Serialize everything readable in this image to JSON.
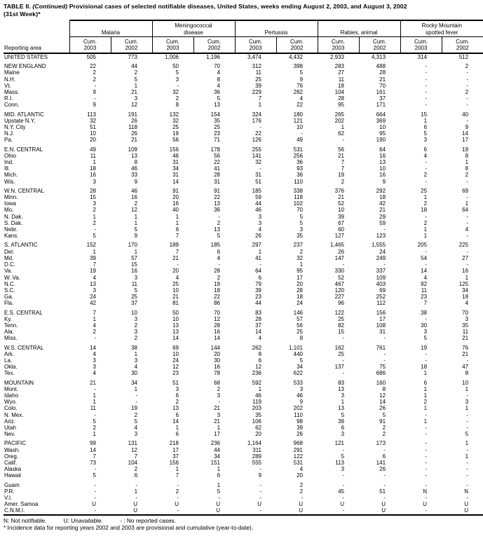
{
  "title": {
    "prefix": "TABLE II.",
    "continued": "(Continued)",
    "rest": "Provisional cases of selected notifiable diseases, United States, weeks ending August 2, 2003, and August 3, 2002",
    "week": "(31st Week)*"
  },
  "table": {
    "reporting_area_label": "Reporting area",
    "groups": [
      {
        "label": "Malaria",
        "sub": [
          "Cum.\n2003",
          "Cum.\n2002"
        ]
      },
      {
        "label": "Meningococcal\ndisease",
        "sub": [
          "Cum.\n2003",
          "Cum.\n2002"
        ]
      },
      {
        "label": "Pertussis",
        "sub": [
          "Cum.\n2003",
          "Cum.\n2002"
        ]
      },
      {
        "label": "Rabies, animal",
        "sub": [
          "Cum.\n2003",
          "Cum.\n2002"
        ]
      },
      {
        "label": "Rocky Mountain\nspotted fever",
        "sub": [
          "Cum.\n2003",
          "Cum.\n2002"
        ]
      }
    ],
    "sections": [
      {
        "rows": [
          [
            "UNITED STATES",
            "505",
            "773",
            "1,006",
            "1,196",
            "3,474",
            "4,432",
            "2,933",
            "4,313",
            "314",
            "512"
          ]
        ]
      },
      {
        "rows": [
          [
            "NEW ENGLAND",
            "22",
            "44",
            "50",
            "70",
            "312",
            "398",
            "283",
            "488",
            "-",
            "2"
          ],
          [
            "Maine",
            "2",
            "2",
            "5",
            "4",
            "11",
            "5",
            "27",
            "28",
            "-",
            "-"
          ],
          [
            "N.H.",
            "2",
            "5",
            "3",
            "8",
            "25",
            "9",
            "11",
            "21",
            "-",
            "-"
          ],
          [
            "Vt.",
            "-",
            "1",
            "-",
            "4",
            "39",
            "76",
            "18",
            "70",
            "-",
            "-"
          ],
          [
            "Mass.",
            "9",
            "21",
            "32",
            "36",
            "229",
            "282",
            "104",
            "161",
            "-",
            "2"
          ],
          [
            "R.I.",
            "-",
            "3",
            "2",
            "5",
            "7",
            "4",
            "28",
            "37",
            "-",
            "-"
          ],
          [
            "Conn.",
            "9",
            "12",
            "8",
            "13",
            "1",
            "22",
            "95",
            "171",
            "-",
            "-"
          ]
        ]
      },
      {
        "rows": [
          [
            "MID. ATLANTIC",
            "113",
            "191",
            "132",
            "154",
            "324",
            "180",
            "265",
            "664",
            "15",
            "40"
          ],
          [
            "Upstate N.Y.",
            "32",
            "26",
            "32",
            "35",
            "176",
            "121",
            "202",
            "369",
            "1",
            "-"
          ],
          [
            "N.Y. City",
            "51",
            "118",
            "25",
            "25",
            "-",
            "10",
            "1",
            "10",
            "6",
            "9"
          ],
          [
            "N.J.",
            "10",
            "26",
            "19",
            "23",
            "22",
            "-",
            "62",
            "95",
            "5",
            "14"
          ],
          [
            "Pa.",
            "20",
            "21",
            "56",
            "71",
            "126",
            "49",
            "-",
            "190",
            "3",
            "17"
          ]
        ]
      },
      {
        "rows": [
          [
            "E.N. CENTRAL",
            "49",
            "109",
            "156",
            "178",
            "255",
            "531",
            "56",
            "64",
            "6",
            "19"
          ],
          [
            "Ohio",
            "11",
            "13",
            "46",
            "56",
            "141",
            "256",
            "21",
            "16",
            "4",
            "8"
          ],
          [
            "Ind.",
            "1",
            "8",
            "31",
            "22",
            "32",
            "36",
            "7",
            "13",
            "-",
            "1"
          ],
          [
            "Ill.",
            "18",
            "46",
            "34",
            "41",
            "-",
            "93",
            "7",
            "10",
            "-",
            "8"
          ],
          [
            "Mich.",
            "16",
            "33",
            "31",
            "28",
            "31",
            "36",
            "19",
            "16",
            "2",
            "2"
          ],
          [
            "Wis.",
            "3",
            "9",
            "14",
            "31",
            "51",
            "110",
            "2",
            "9",
            "-",
            "-"
          ]
        ]
      },
      {
        "rows": [
          [
            "W.N. CENTRAL",
            "28",
            "46",
            "91",
            "91",
            "185",
            "338",
            "376",
            "292",
            "25",
            "69"
          ],
          [
            "Minn.",
            "15",
            "16",
            "20",
            "22",
            "59",
            "118",
            "21",
            "18",
            "1",
            "-"
          ],
          [
            "Iowa",
            "3",
            "2",
            "16",
            "13",
            "44",
            "102",
            "52",
            "42",
            "2",
            "1"
          ],
          [
            "Mo.",
            "2",
            "12",
            "40",
            "36",
            "46",
            "70",
            "10",
            "21",
            "18",
            "64"
          ],
          [
            "N. Dak.",
            "1",
            "1",
            "1",
            "-",
            "3",
            "5",
            "39",
            "29",
            "-",
            "-"
          ],
          [
            "S. Dak.",
            "2",
            "1",
            "1",
            "2",
            "3",
            "5",
            "67",
            "59",
            "2",
            "-"
          ],
          [
            "Nebr.",
            "-",
            "5",
            "6",
            "13",
            "4",
            "3",
            "60",
            "-",
            "1",
            "4"
          ],
          [
            "Kans.",
            "5",
            "9",
            "7",
            "5",
            "26",
            "35",
            "127",
            "123",
            "1",
            "-"
          ]
        ]
      },
      {
        "rows": [
          [
            "S. ATLANTIC",
            "152",
            "170",
            "189",
            "185",
            "297",
            "237",
            "1,465",
            "1,555",
            "205",
            "225"
          ],
          [
            "Del.",
            "1",
            "1",
            "7",
            "6",
            "1",
            "2",
            "26",
            "24",
            "-",
            "-"
          ],
          [
            "Md.",
            "39",
            "57",
            "21",
            "4",
            "41",
            "32",
            "147",
            "249",
            "54",
            "27"
          ],
          [
            "D.C.",
            "7",
            "15",
            "-",
            "-",
            "-",
            "1",
            "-",
            "-",
            "-",
            "-"
          ],
          [
            "Va.",
            "19",
            "16",
            "20",
            "28",
            "64",
            "95",
            "330",
            "337",
            "14",
            "16"
          ],
          [
            "W. Va.",
            "4",
            "3",
            "4",
            "2",
            "6",
            "17",
            "52",
            "109",
            "4",
            "1"
          ],
          [
            "N.C.",
            "13",
            "11",
            "25",
            "19",
            "79",
            "20",
            "467",
            "403",
            "92",
            "125"
          ],
          [
            "S.C.",
            "3",
            "5",
            "10",
            "18",
            "39",
            "28",
            "120",
            "69",
            "11",
            "34"
          ],
          [
            "Ga.",
            "24",
            "25",
            "21",
            "22",
            "23",
            "18",
            "227",
            "252",
            "23",
            "18"
          ],
          [
            "Fla.",
            "42",
            "37",
            "81",
            "86",
            "44",
            "24",
            "96",
            "112",
            "7",
            "4"
          ]
        ]
      },
      {
        "rows": [
          [
            "E.S. CENTRAL",
            "7",
            "10",
            "50",
            "70",
            "83",
            "146",
            "122",
            "156",
            "38",
            "70"
          ],
          [
            "Ky.",
            "1",
            "3",
            "10",
            "12",
            "28",
            "57",
            "25",
            "17",
            "-",
            "3"
          ],
          [
            "Tenn.",
            "4",
            "2",
            "13",
            "28",
            "37",
            "56",
            "82",
            "108",
            "30",
            "35"
          ],
          [
            "Ala.",
            "2",
            "3",
            "13",
            "16",
            "14",
            "25",
            "15",
            "31",
            "3",
            "11"
          ],
          [
            "Miss.",
            "-",
            "2",
            "14",
            "14",
            "4",
            "8",
            "-",
            "-",
            "5",
            "21"
          ]
        ]
      },
      {
        "rows": [
          [
            "W.S. CENTRAL",
            "14",
            "38",
            "69",
            "144",
            "262",
            "1,101",
            "162",
            "761",
            "19",
            "76"
          ],
          [
            "Ark.",
            "4",
            "1",
            "10",
            "20",
            "8",
            "440",
            "25",
            "-",
            "-",
            "21"
          ],
          [
            "La.",
            "3",
            "3",
            "24",
            "30",
            "6",
            "5",
            "-",
            "-",
            "-",
            "-"
          ],
          [
            "Okla.",
            "3",
            "4",
            "12",
            "16",
            "12",
            "34",
            "137",
            "75",
            "18",
            "47"
          ],
          [
            "Tex.",
            "4",
            "30",
            "23",
            "78",
            "236",
            "622",
            "-",
            "686",
            "1",
            "8"
          ]
        ]
      },
      {
        "rows": [
          [
            "MOUNTAIN",
            "21",
            "34",
            "51",
            "68",
            "592",
            "533",
            "83",
            "160",
            "6",
            "10"
          ],
          [
            "Mont.",
            "-",
            "1",
            "3",
            "2",
            "1",
            "3",
            "13",
            "8",
            "1",
            "1"
          ],
          [
            "Idaho",
            "1",
            "-",
            "6",
            "3",
            "46",
            "46",
            "3",
            "12",
            "1",
            "-"
          ],
          [
            "Wyo.",
            "1",
            "-",
            "2",
            "-",
            "119",
            "9",
            "1",
            "14",
            "2",
            "3"
          ],
          [
            "Colo.",
            "11",
            "19",
            "13",
            "21",
            "203",
            "202",
            "13",
            "26",
            "1",
            "1"
          ],
          [
            "N. Mex.",
            "-",
            "2",
            "6",
            "3",
            "35",
            "110",
            "5",
            "5",
            "-",
            "-"
          ],
          [
            "Ariz.",
            "5",
            "5",
            "14",
            "21",
            "106",
            "98",
            "39",
            "91",
            "1",
            "-"
          ],
          [
            "Utah",
            "2",
            "4",
            "1",
            "1",
            "62",
            "39",
            "6",
            "2",
            "-",
            "-"
          ],
          [
            "Nev.",
            "1",
            "3",
            "6",
            "17",
            "20",
            "26",
            "3",
            "2",
            "-",
            "5"
          ]
        ]
      },
      {
        "rows": [
          [
            "PACIFIC",
            "99",
            "131",
            "218",
            "236",
            "1,164",
            "968",
            "121",
            "173",
            "-",
            "1"
          ],
          [
            "Wash.",
            "14",
            "12",
            "17",
            "44",
            "311",
            "291",
            "-",
            "-",
            "-",
            "-"
          ],
          [
            "Oreg.",
            "7",
            "7",
            "37",
            "34",
            "289",
            "122",
            "5",
            "6",
            "-",
            "1"
          ],
          [
            "Calif.",
            "73",
            "104",
            "156",
            "151",
            "555",
            "531",
            "113",
            "141",
            "-",
            "-"
          ],
          [
            "Alaska",
            "-",
            "2",
            "1",
            "1",
            "-",
            "4",
            "3",
            "26",
            "-",
            "-"
          ],
          [
            "Hawaii",
            "5",
            "6",
            "7",
            "6",
            "9",
            "20",
            "-",
            "-",
            "-",
            "-"
          ]
        ]
      },
      {
        "rows": [
          [
            "Guam",
            "-",
            "-",
            "-",
            "1",
            "-",
            "2",
            "-",
            "-",
            "-",
            "-"
          ],
          [
            "P.R.",
            "-",
            "1",
            "2",
            "5",
            "-",
            "2",
            "45",
            "51",
            "N",
            "N"
          ],
          [
            "V.I.",
            "-",
            "-",
            "-",
            "-",
            "-",
            "-",
            "-",
            "-",
            "-",
            "-"
          ],
          [
            "Amer. Samoa",
            "U",
            "U",
            "U",
            "U",
            "U",
            "U",
            "U",
            "U",
            "U",
            "U"
          ],
          [
            "C.N.M.I.",
            "-",
            "U",
            "-",
            "U",
            "-",
            "U",
            "-",
            "U",
            "-",
            "U"
          ]
        ]
      }
    ]
  },
  "footnotes": {
    "legend": [
      "N: Not notifiable.",
      "U: Unavailable.",
      "- : No reported cases."
    ],
    "note": "* Incidence data for reporting years 2002 and 2003 are provisional and cumulative (year-to-date)."
  }
}
